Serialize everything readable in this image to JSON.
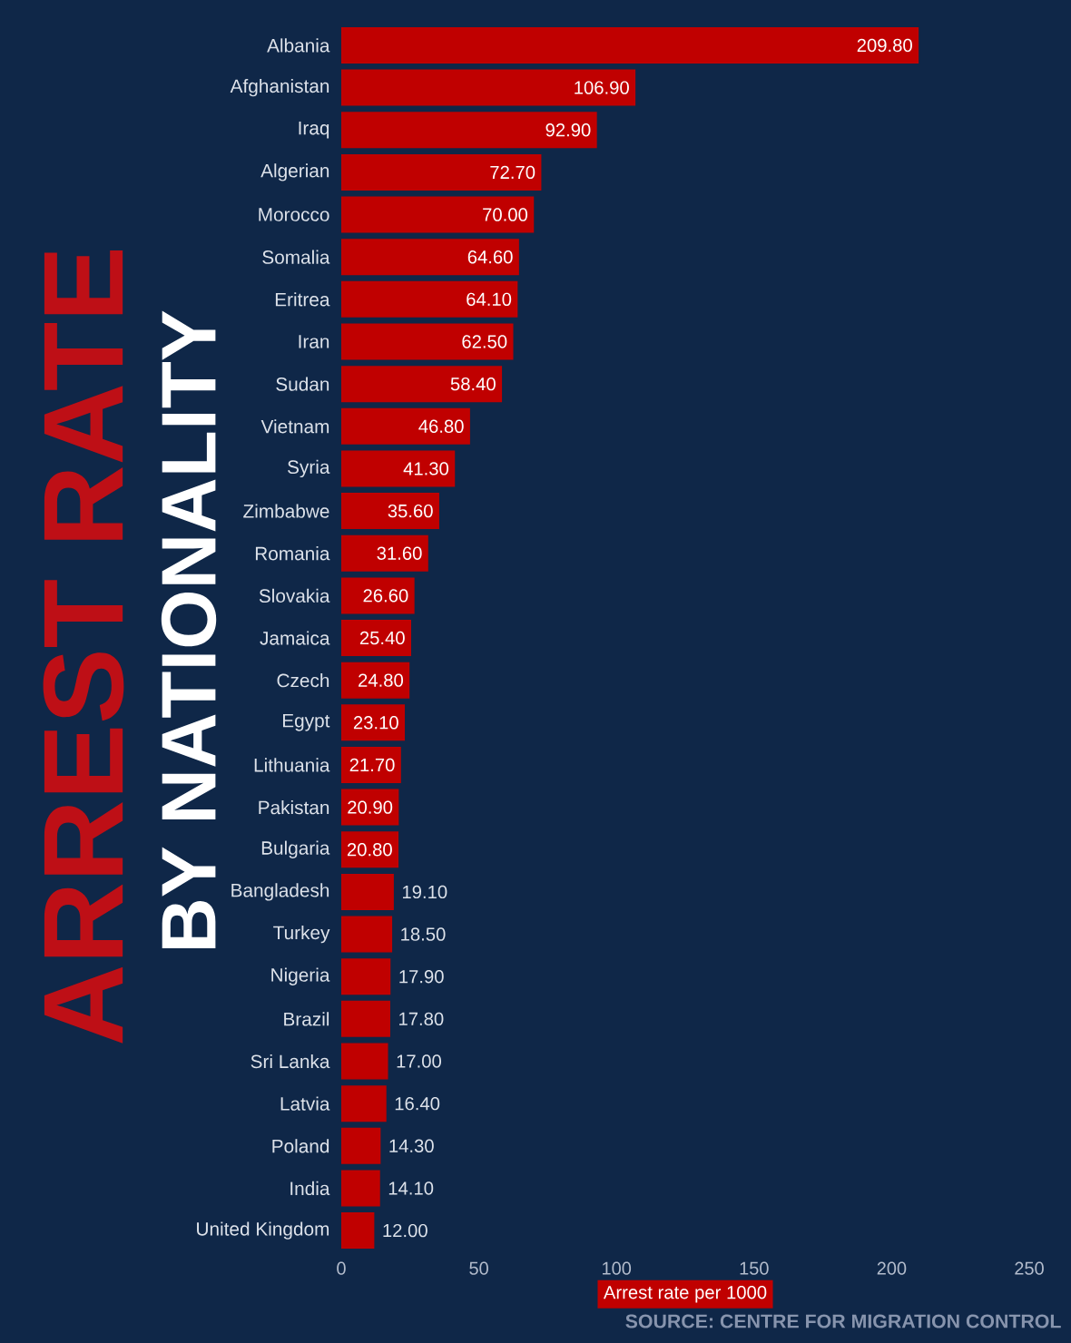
{
  "chart_data": {
    "type": "bar",
    "orientation": "horizontal",
    "title": "ARREST RATE",
    "subtitle": "BY NATIONALITY",
    "xlabel": "Arrest rate per 1000",
    "categories": [
      "Albania",
      "Afghanistan",
      "Iraq",
      "Algerian",
      "Morocco",
      "Somalia",
      "Eritrea",
      "Iran",
      "Sudan",
      "Vietnam",
      "Syria",
      "Zimbabwe",
      "Romania",
      "Slovakia",
      "Jamaica",
      "Czech",
      "Egypt",
      "Lithuania",
      "Pakistan",
      "Bulgaria",
      "Bangladesh",
      "Turkey",
      "Nigeria",
      "Brazil",
      "Sri Lanka",
      "Latvia",
      "Poland",
      "India",
      "United Kingdom"
    ],
    "values": [
      209.8,
      106.9,
      92.9,
      72.7,
      70.0,
      64.6,
      64.1,
      62.5,
      58.4,
      46.8,
      41.3,
      35.6,
      31.6,
      26.6,
      25.4,
      24.8,
      23.1,
      21.7,
      20.9,
      20.8,
      19.1,
      18.5,
      17.9,
      17.8,
      17.0,
      16.4,
      14.3,
      14.1,
      12.0
    ],
    "value_labels": [
      "209.80",
      "106.90",
      "92.90",
      "72.70",
      "70.00",
      "64.60",
      "64.10",
      "62.50",
      "58.40",
      "46.80",
      "41.30",
      "35.60",
      "31.60",
      "26.60",
      "25.40",
      "24.80",
      "23.10",
      "21.70",
      "20.90",
      "20.80",
      "19.10",
      "18.50",
      "17.90",
      "17.80",
      "17.00",
      "16.40",
      "14.30",
      "14.10",
      "12.00"
    ],
    "color": "#c00000",
    "xlim": [
      0,
      250
    ],
    "xticks": [
      0,
      50,
      100,
      150,
      200,
      250
    ],
    "annotations": [
      "SOURCE: CENTRE FOR MIGRATION CONTROL"
    ]
  }
}
